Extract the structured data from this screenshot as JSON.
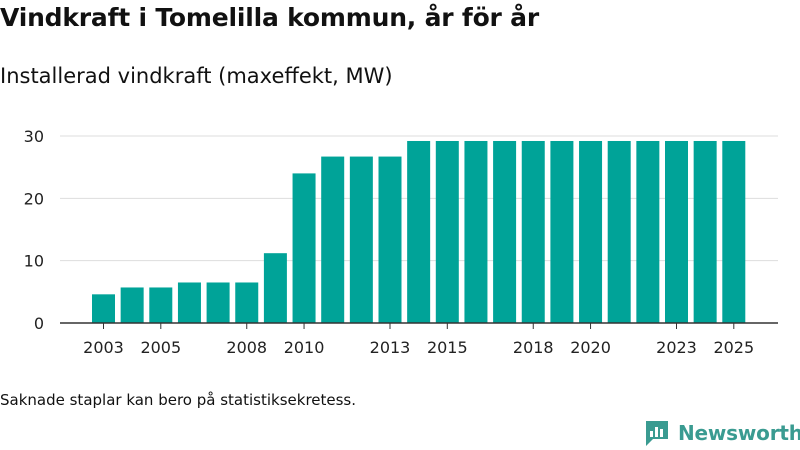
{
  "title": "Vindkraft i Tomelilla kommun, år för år",
  "subtitle": "Installerad vindkraft (maxeffekt, MW)",
  "footnote": "Saknade staplar kan bero på statistiksekretess.",
  "brand": {
    "name": "Newsworthy",
    "color": "#3a9b91"
  },
  "chart_data": {
    "type": "bar",
    "title": "Vindkraft i Tomelilla kommun, år för år",
    "ylabel": "Installerad vindkraft (maxeffekt, MW)",
    "xlabel": "",
    "categories": [
      "2003",
      "2004",
      "2005",
      "2006",
      "2007",
      "2008",
      "2009",
      "2010",
      "2011",
      "2012",
      "2013",
      "2014",
      "2015",
      "2016",
      "2017",
      "2018",
      "2019",
      "2020",
      "2021",
      "2022",
      "2023",
      "2024",
      "2025"
    ],
    "values": [
      4.6,
      5.7,
      5.7,
      6.5,
      6.5,
      6.5,
      11.2,
      24.0,
      26.7,
      26.7,
      26.7,
      29.2,
      29.2,
      29.2,
      29.2,
      29.2,
      29.2,
      29.2,
      29.2,
      29.2,
      29.2,
      29.2,
      29.2
    ],
    "xtick_labels": [
      "2003",
      "2005",
      "2008",
      "2010",
      "2013",
      "2015",
      "2018",
      "2020",
      "2023",
      "2025"
    ],
    "yticks": [
      0,
      10,
      20,
      30
    ],
    "ylim": [
      0,
      32
    ],
    "grid": true,
    "bar_color": "#00a398"
  }
}
